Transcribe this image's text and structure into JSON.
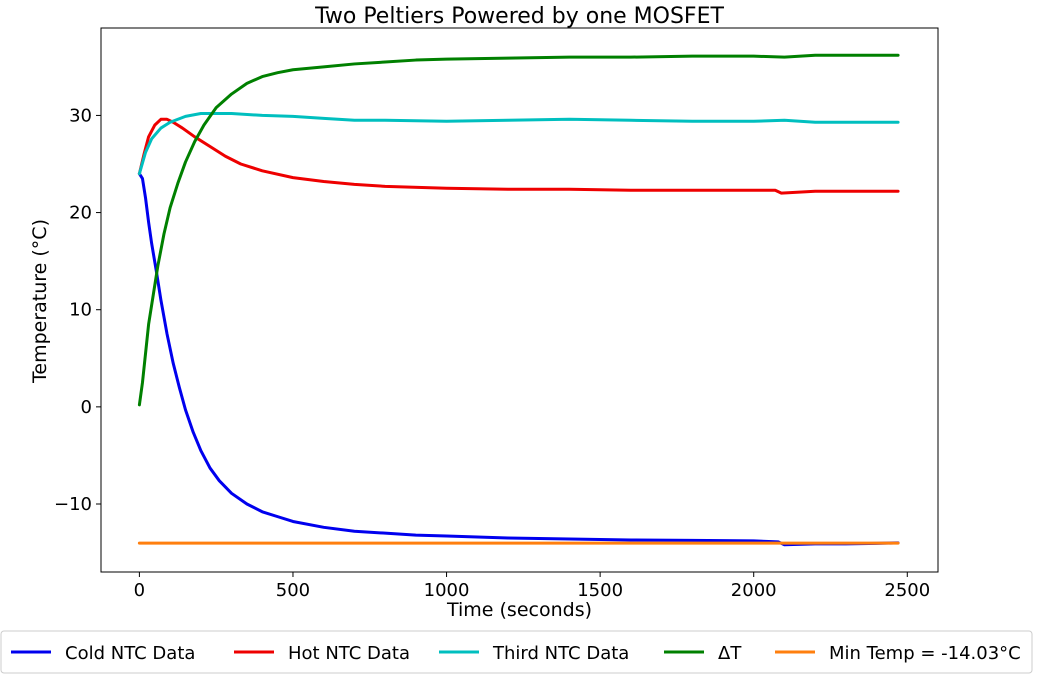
{
  "chart_data": {
    "type": "line",
    "title": "Two Peltiers Powered by one MOSFET",
    "xlabel": "Time (seconds)",
    "ylabel": "Temperature (°C)",
    "xlim": [
      -125,
      2600
    ],
    "ylim": [
      -17,
      39
    ],
    "xticks": [
      0,
      500,
      1000,
      1500,
      2000,
      2500
    ],
    "xtick_labels": [
      "0",
      "500",
      "1000",
      "1500",
      "2000",
      "2500"
    ],
    "yticks": [
      -10,
      0,
      10,
      20,
      30
    ],
    "ytick_labels": [
      "−10",
      "0",
      "10",
      "20",
      "30"
    ],
    "grid": false,
    "legend_position": "bottom-outside",
    "series": [
      {
        "name": "Cold NTC Data",
        "color": "#0000ee",
        "points": [
          [
            0,
            24
          ],
          [
            10,
            23.5
          ],
          [
            20,
            21.5
          ],
          [
            30,
            19.0
          ],
          [
            40,
            16.8
          ],
          [
            55,
            14.0
          ],
          [
            70,
            11.0
          ],
          [
            90,
            7.5
          ],
          [
            110,
            4.5
          ],
          [
            130,
            2.0
          ],
          [
            150,
            -0.3
          ],
          [
            175,
            -2.6
          ],
          [
            200,
            -4.5
          ],
          [
            230,
            -6.3
          ],
          [
            260,
            -7.6
          ],
          [
            300,
            -8.9
          ],
          [
            350,
            -10.0
          ],
          [
            400,
            -10.8
          ],
          [
            450,
            -11.3
          ],
          [
            500,
            -11.8
          ],
          [
            600,
            -12.4
          ],
          [
            700,
            -12.8
          ],
          [
            800,
            -13.0
          ],
          [
            900,
            -13.2
          ],
          [
            1000,
            -13.3
          ],
          [
            1200,
            -13.5
          ],
          [
            1400,
            -13.6
          ],
          [
            1600,
            -13.7
          ],
          [
            1800,
            -13.75
          ],
          [
            2000,
            -13.8
          ],
          [
            2080,
            -13.9
          ],
          [
            2100,
            -14.2
          ],
          [
            2200,
            -14.1
          ],
          [
            2300,
            -14.1
          ],
          [
            2400,
            -14.05
          ],
          [
            2470,
            -14.0
          ]
        ]
      },
      {
        "name": "Hot NTC Data",
        "color": "#ee0000",
        "points": [
          [
            0,
            24
          ],
          [
            15,
            26
          ],
          [
            30,
            27.8
          ],
          [
            50,
            29.0
          ],
          [
            70,
            29.6
          ],
          [
            90,
            29.6
          ],
          [
            110,
            29.3
          ],
          [
            140,
            28.7
          ],
          [
            180,
            27.8
          ],
          [
            230,
            26.8
          ],
          [
            280,
            25.8
          ],
          [
            330,
            25.0
          ],
          [
            400,
            24.3
          ],
          [
            500,
            23.6
          ],
          [
            600,
            23.2
          ],
          [
            700,
            22.9
          ],
          [
            800,
            22.7
          ],
          [
            1000,
            22.5
          ],
          [
            1200,
            22.4
          ],
          [
            1400,
            22.4
          ],
          [
            1600,
            22.3
          ],
          [
            1800,
            22.3
          ],
          [
            2000,
            22.3
          ],
          [
            2070,
            22.3
          ],
          [
            2090,
            22.0
          ],
          [
            2200,
            22.2
          ],
          [
            2470,
            22.2
          ]
        ]
      },
      {
        "name": "Third NTC Data",
        "color": "#00bfbf",
        "points": [
          [
            0,
            24
          ],
          [
            20,
            26.2
          ],
          [
            40,
            27.6
          ],
          [
            70,
            28.7
          ],
          [
            100,
            29.3
          ],
          [
            150,
            29.9
          ],
          [
            200,
            30.2
          ],
          [
            300,
            30.2
          ],
          [
            400,
            30.0
          ],
          [
            500,
            29.9
          ],
          [
            600,
            29.7
          ],
          [
            700,
            29.5
          ],
          [
            800,
            29.5
          ],
          [
            1000,
            29.4
          ],
          [
            1200,
            29.5
          ],
          [
            1400,
            29.6
          ],
          [
            1600,
            29.5
          ],
          [
            1800,
            29.4
          ],
          [
            2000,
            29.4
          ],
          [
            2100,
            29.5
          ],
          [
            2200,
            29.3
          ],
          [
            2470,
            29.3
          ]
        ]
      },
      {
        "name": "ΔT",
        "color": "#008000",
        "points": [
          [
            0,
            0.2
          ],
          [
            10,
            2.5
          ],
          [
            20,
            5.5
          ],
          [
            30,
            8.5
          ],
          [
            45,
            11.5
          ],
          [
            60,
            14.5
          ],
          [
            80,
            17.8
          ],
          [
            100,
            20.5
          ],
          [
            125,
            23.0
          ],
          [
            150,
            25.2
          ],
          [
            180,
            27.3
          ],
          [
            210,
            29.0
          ],
          [
            250,
            30.8
          ],
          [
            300,
            32.2
          ],
          [
            350,
            33.3
          ],
          [
            400,
            34.0
          ],
          [
            450,
            34.4
          ],
          [
            500,
            34.7
          ],
          [
            600,
            35.0
          ],
          [
            700,
            35.3
          ],
          [
            800,
            35.5
          ],
          [
            900,
            35.7
          ],
          [
            1000,
            35.8
          ],
          [
            1200,
            35.9
          ],
          [
            1400,
            36.0
          ],
          [
            1600,
            36.0
          ],
          [
            1800,
            36.1
          ],
          [
            2000,
            36.1
          ],
          [
            2100,
            36.0
          ],
          [
            2200,
            36.2
          ],
          [
            2470,
            36.2
          ]
        ]
      },
      {
        "name": "Min Temp = -14.03°C",
        "color": "#ff7f0e",
        "points": [
          [
            0,
            -14.03
          ],
          [
            2470,
            -14.03
          ]
        ]
      }
    ]
  }
}
